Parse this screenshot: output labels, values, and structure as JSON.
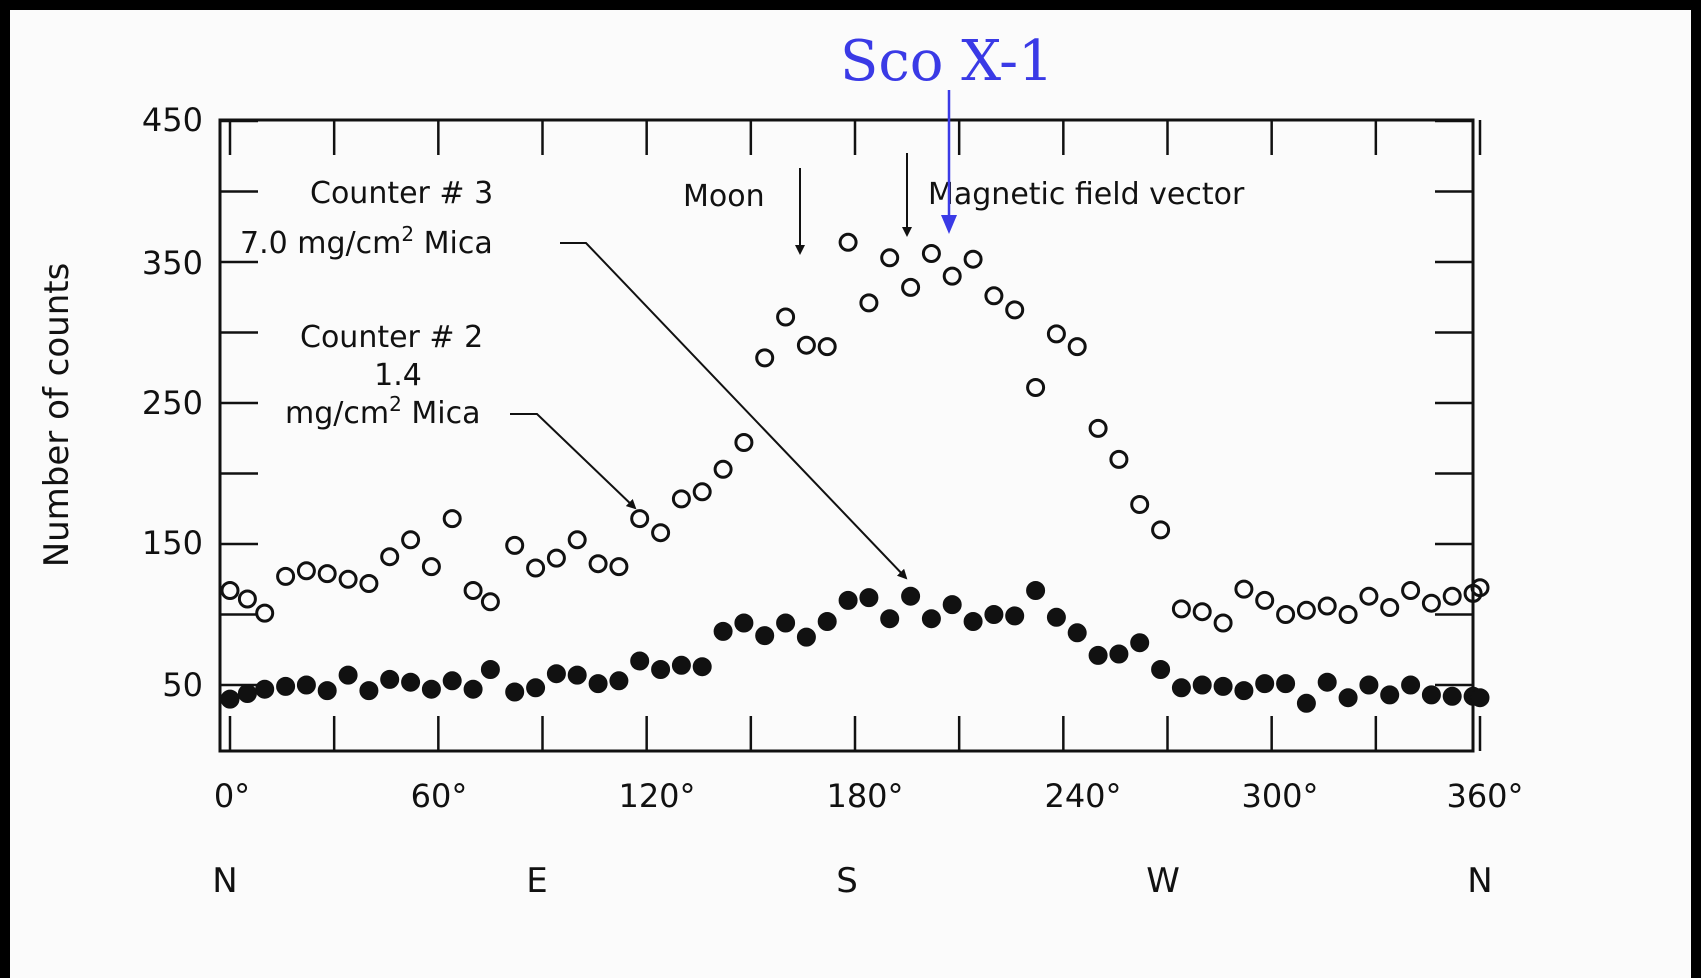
{
  "chart_data": {
    "type": "scatter",
    "ylabel": "Number of counts",
    "xlim": [
      0,
      360
    ],
    "ylim": [
      0,
      450
    ],
    "y_ticks": [
      "450",
      "350",
      "250",
      "150",
      "50"
    ],
    "x_ticks": [
      "0°",
      "60°",
      "120°",
      "180°",
      "240°",
      "300°",
      "360°"
    ],
    "direction_labels": [
      "N",
      "E",
      "S",
      "W",
      "N"
    ],
    "grid": false,
    "series": [
      {
        "marker": "open-circle",
        "label_lines": [
          "Counter # 3",
          "7.0 mg/cm",
          " Mica"
        ],
        "x": [
          0,
          5,
          10,
          16,
          22,
          28,
          34,
          40,
          46,
          52,
          58,
          64,
          70,
          75,
          82,
          88,
          94,
          100,
          106,
          112,
          118,
          124,
          130,
          136,
          142,
          148,
          154,
          160,
          166,
          172,
          178,
          184,
          190,
          196,
          202,
          208,
          214,
          220,
          226,
          232,
          238,
          244,
          250,
          256,
          262,
          268,
          274,
          280,
          286,
          292,
          298,
          304,
          310,
          316,
          322,
          328,
          334,
          340,
          346,
          352,
          358,
          360
        ],
        "y": [
          117,
          111,
          101,
          127,
          131,
          129,
          125,
          122,
          141,
          153,
          134,
          168,
          117,
          109,
          149,
          133,
          140,
          153,
          136,
          134,
          168,
          158,
          182,
          187,
          203,
          222,
          282,
          311,
          291,
          290,
          364,
          321,
          353,
          332,
          356,
          340,
          352,
          326,
          316,
          261,
          299,
          290,
          232,
          210,
          178,
          160,
          104,
          102,
          94,
          118,
          110,
          100,
          103,
          106,
          100,
          113,
          105,
          117,
          108,
          113,
          115,
          119
        ]
      },
      {
        "marker": "filled-circle",
        "label_lines": [
          "Counter # 2",
          "1.4",
          "mg/cm",
          " Mica"
        ],
        "x": [
          0,
          5,
          10,
          16,
          22,
          28,
          34,
          40,
          46,
          52,
          58,
          64,
          70,
          75,
          82,
          88,
          94,
          100,
          106,
          112,
          118,
          124,
          130,
          136,
          142,
          148,
          154,
          160,
          166,
          172,
          178,
          184,
          190,
          196,
          202,
          208,
          214,
          220,
          226,
          232,
          238,
          244,
          250,
          256,
          262,
          268,
          274,
          280,
          286,
          292,
          298,
          304,
          310,
          316,
          322,
          328,
          334,
          340,
          346,
          352,
          358,
          360
        ],
        "y": [
          40,
          44,
          47,
          49,
          50,
          46,
          57,
          46,
          54,
          52,
          47,
          53,
          47,
          61,
          45,
          48,
          58,
          57,
          51,
          53,
          67,
          61,
          64,
          63,
          88,
          94,
          85,
          94,
          84,
          95,
          110,
          112,
          97,
          113,
          97,
          107,
          95,
          100,
          99,
          117,
          98,
          87,
          71,
          72,
          80,
          61,
          48,
          50,
          49,
          46,
          51,
          51,
          37,
          52,
          41,
          50,
          43,
          50,
          43,
          42,
          42,
          41
        ]
      }
    ],
    "annotations": [
      {
        "text": "Moon",
        "x": 162
      },
      {
        "text": "Magnetic  field  vector",
        "x": 192
      },
      {
        "text": "Sco X-1",
        "x": 205,
        "color": "#3a3ae6"
      }
    ],
    "superscript": "2"
  }
}
